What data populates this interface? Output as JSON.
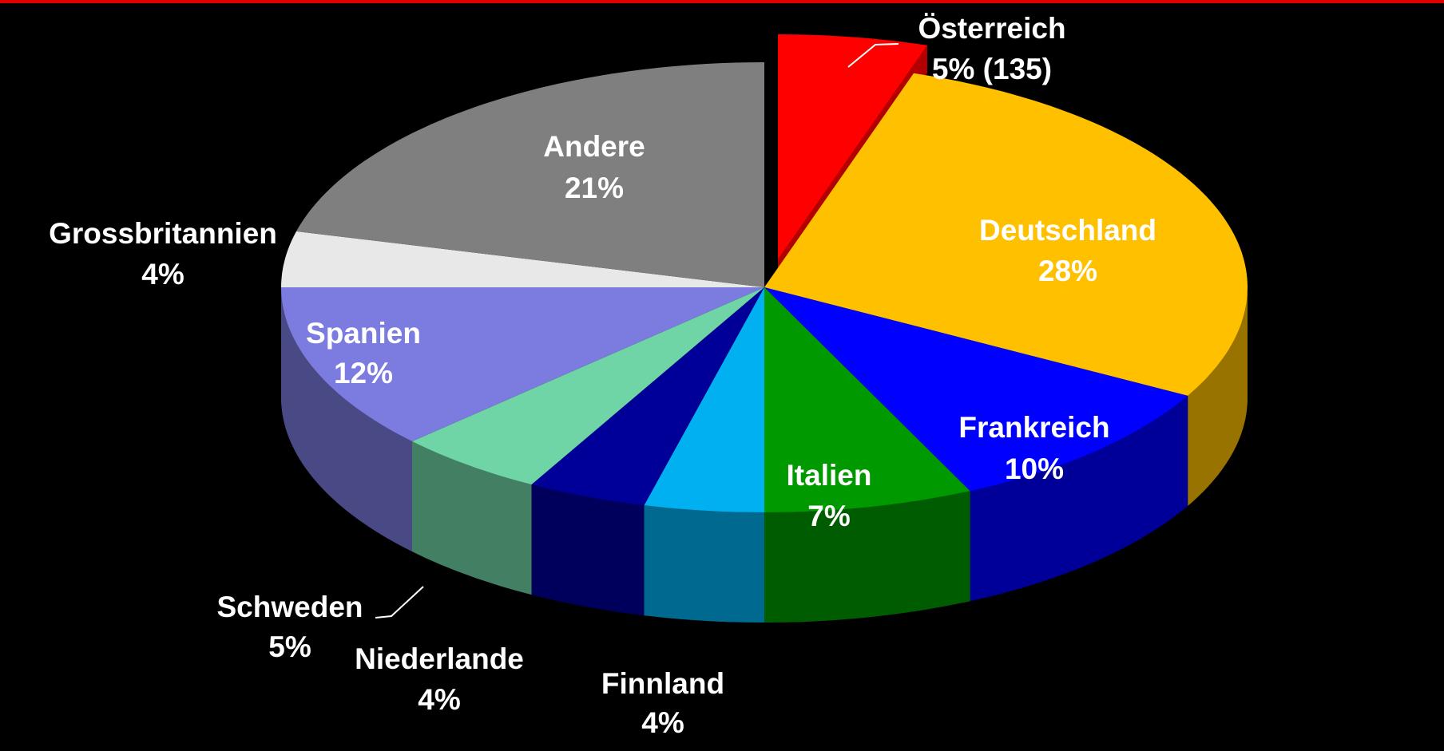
{
  "chart_data": {
    "type": "pie",
    "categories": [
      "Österreich",
      "Deutschland",
      "Frankreich",
      "Italien",
      "Finnland",
      "Niederlande",
      "Schweden",
      "Spanien",
      "Grossbritannien",
      "Andere"
    ],
    "values": [
      5,
      28,
      10,
      7,
      4,
      4,
      5,
      12,
      4,
      21
    ],
    "value_labels": [
      "5%  (135)",
      "28%",
      "10%",
      "7%",
      "4%",
      "4%",
      "5%",
      "12%",
      "4%",
      "21%"
    ],
    "colors": [
      "#ff0000",
      "#ffc000",
      "#0000ff",
      "#009900",
      "#00b0f0",
      "#000099",
      "#6fd4a6",
      "#7b7be0",
      "#e8e8e8",
      "#7f7f7f"
    ]
  }
}
